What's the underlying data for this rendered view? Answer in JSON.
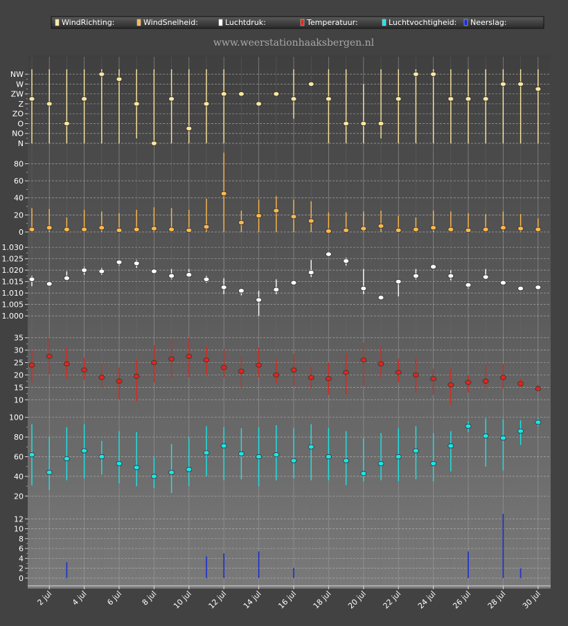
{
  "watermark": "www.weerstationhaaksbergen.nl",
  "legend": [
    {
      "label": "WindRichting:",
      "color": "#ffe7a0"
    },
    {
      "label": "WindSnelheid:",
      "color": "#ffb84d"
    },
    {
      "label": "Luchtdruk:",
      "color": "#ffffff"
    },
    {
      "label": "Temperatuur:",
      "color": "#e0261a"
    },
    {
      "label": "Luchtvochtigheid:",
      "color": "#19e6ea"
    },
    {
      "label": "Neerslag:",
      "color": "#1a2fcf"
    }
  ],
  "chart_data": {
    "type": "scatter",
    "days": [
      1,
      2,
      3,
      4,
      5,
      6,
      7,
      8,
      9,
      10,
      11,
      12,
      13,
      14,
      15,
      16,
      17,
      18,
      19,
      20,
      21,
      22,
      23,
      24,
      25,
      26,
      27,
      28,
      29,
      30
    ],
    "x_tick_labels": [
      "2 jul",
      "4 jul",
      "6 jul",
      "8 jul",
      "10 jul",
      "12 jul",
      "14 jul",
      "16 jul",
      "18 jul",
      "20 jul",
      "22 jul",
      "24 jul",
      "26 jul",
      "28 jul",
      "30 jul"
    ],
    "x_tick_days": [
      2,
      4,
      6,
      8,
      10,
      12,
      14,
      16,
      18,
      20,
      22,
      24,
      26,
      28,
      30
    ],
    "panels": [
      {
        "name": "WindRichting",
        "color": "#ffe7a0",
        "kind": "errorbar",
        "ylim": [
          0,
          7.5
        ],
        "tick_values": [
          0,
          1,
          2,
          3,
          4,
          5,
          6,
          7
        ],
        "tick_labels": [
          "N",
          "NO",
          "O",
          "ZO",
          "Z",
          "ZW",
          "W",
          "NW"
        ],
        "values": [
          4.5,
          4.0,
          2.0,
          4.5,
          7.0,
          6.5,
          4.0,
          0.0,
          4.5,
          1.5,
          4.0,
          5.0,
          5.0,
          4.0,
          5.0,
          4.5,
          6.0,
          4.5,
          2.0,
          2.0,
          2.0,
          4.5,
          7.0,
          7.0,
          4.5,
          4.5,
          4.5,
          6.0,
          6.0,
          5.5
        ],
        "low": [
          0,
          0,
          0,
          0,
          0,
          0,
          0.5,
          0,
          0,
          0,
          0,
          0,
          5,
          4,
          5,
          2.5,
          6,
          0,
          0,
          0,
          0.5,
          0,
          0,
          0,
          0,
          0,
          0,
          0,
          0,
          0
        ],
        "high": [
          7.5,
          7.5,
          7.5,
          7.5,
          7.5,
          7.5,
          7.5,
          7.5,
          7.5,
          7.5,
          7.5,
          7.5,
          5,
          4,
          5,
          7.5,
          6,
          7.5,
          7.5,
          6,
          7.5,
          7.5,
          7.5,
          7.5,
          7.5,
          7.5,
          7.5,
          7.5,
          7.5,
          7.5
        ]
      },
      {
        "name": "WindSnelheid",
        "color": "#ffb84d",
        "kind": "errorbar",
        "ylim": [
          0,
          95
        ],
        "tick_values": [
          0,
          20,
          40,
          60,
          80
        ],
        "tick_labels": [
          "0",
          "20",
          "40",
          "60",
          "80"
        ],
        "values": [
          3,
          5,
          3,
          3,
          5,
          2,
          3,
          4,
          3,
          2,
          6,
          45,
          11,
          19,
          25,
          18,
          13,
          1,
          2,
          4,
          7,
          2,
          3,
          5,
          3,
          2,
          3,
          5,
          4,
          3
        ],
        "low": [
          0,
          0,
          0,
          0,
          0,
          0,
          0,
          0,
          0,
          0,
          0,
          0,
          0,
          0,
          0,
          0,
          0,
          0,
          0,
          0,
          0,
          0,
          0,
          0,
          0,
          0,
          0,
          0,
          0,
          0
        ],
        "high": [
          28,
          27,
          17,
          26,
          24,
          22,
          26,
          29,
          28,
          26,
          39,
          93,
          25,
          38,
          42,
          38,
          36,
          23,
          23,
          24,
          25,
          19,
          17,
          25,
          24,
          22,
          21,
          24,
          21,
          16
        ]
      },
      {
        "name": "Luchtdruk",
        "color": "#ffffff",
        "kind": "errorbar",
        "ylim": [
          0.997,
          1.034
        ],
        "tick_values": [
          1.0,
          1.005,
          1.01,
          1.015,
          1.02,
          1.025,
          1.03
        ],
        "tick_labels": [
          "1.000",
          "1.005",
          "1.010",
          "1.015",
          "1.020",
          "1.025",
          "1.030"
        ],
        "values": [
          1.016,
          1.014,
          1.0165,
          1.02,
          1.0195,
          1.0235,
          1.023,
          1.0195,
          1.0175,
          1.018,
          1.016,
          1.0125,
          1.011,
          1.007,
          1.0115,
          1.0145,
          1.019,
          1.027,
          1.024,
          1.012,
          1.008,
          1.015,
          1.0175,
          1.0215,
          1.0175,
          1.0135,
          1.017,
          1.0145,
          1.012,
          1.0125
        ],
        "low": [
          1.013,
          1.0135,
          1.016,
          1.018,
          1.018,
          1.022,
          1.021,
          1.019,
          1.016,
          1.017,
          1.0145,
          1.0095,
          1.009,
          1.0,
          1.0095,
          1.0135,
          1.017,
          1.026,
          1.022,
          1.0095,
          1.0075,
          1.0085,
          1.016,
          1.021,
          1.0155,
          1.012,
          1.016,
          1.0135,
          1.0115,
          1.012
        ],
        "high": [
          1.0175,
          1.015,
          1.0195,
          1.0215,
          1.021,
          1.0245,
          1.0245,
          1.0205,
          1.0205,
          1.0205,
          1.0175,
          1.0165,
          1.012,
          1.011,
          1.016,
          1.0155,
          1.0245,
          1.028,
          1.0255,
          1.0205,
          1.009,
          1.015,
          1.0205,
          1.022,
          1.02,
          1.0145,
          1.0205,
          1.0155,
          1.0125,
          1.013
        ]
      },
      {
        "name": "Temperatuur",
        "color": "#e0261a",
        "kind": "errorbar",
        "ylim": [
          7,
          38
        ],
        "tick_values": [
          10,
          15,
          20,
          25,
          30,
          35
        ],
        "tick_labels": [
          "10",
          "15",
          "20",
          "25",
          "30",
          "35"
        ],
        "values": [
          24,
          27.5,
          24.5,
          22,
          19,
          17.5,
          19.5,
          25,
          26.5,
          27.5,
          26,
          23,
          21.5,
          24,
          20,
          22,
          19,
          18.5,
          21,
          26,
          24.5,
          21,
          20,
          18.5,
          16,
          17,
          17.5,
          19,
          16.5,
          14.5
        ],
        "low": [
          17.5,
          20,
          18.5,
          18,
          15,
          10,
          9.5,
          17,
          18.5,
          19,
          20,
          19,
          14.5,
          19,
          16.5,
          15.5,
          14.5,
          12,
          12,
          15.5,
          19,
          17,
          13,
          12,
          8,
          13,
          14.5,
          14.5,
          15,
          14
        ],
        "high": [
          30,
          35,
          31,
          27,
          24.5,
          23,
          26,
          32,
          34.5,
          35,
          31.5,
          30.5,
          27.5,
          31,
          26.5,
          28.5,
          23.5,
          25,
          28.5,
          33,
          31.5,
          26.5,
          27,
          22.5,
          22.5,
          20,
          24,
          24.5,
          18.5,
          16
        ]
      },
      {
        "name": "Luchtvochtigheid",
        "color": "#19e6ea",
        "kind": "errorbar",
        "ylim": [
          16,
          104
        ],
        "tick_values": [
          20,
          40,
          60,
          80,
          100
        ],
        "tick_labels": [
          "20",
          "40",
          "60",
          "80",
          "100"
        ],
        "values": [
          62,
          44,
          58,
          66,
          60,
          53,
          49,
          40,
          44,
          47,
          64,
          71,
          63,
          60,
          62,
          56,
          70,
          60,
          56,
          43,
          53,
          60,
          66,
          53,
          71,
          91,
          81,
          79,
          86,
          95
        ],
        "low": [
          31,
          26,
          36,
          38,
          42,
          33,
          30,
          28,
          23,
          30,
          40,
          36,
          37,
          30,
          36,
          38,
          36,
          36,
          31,
          35,
          36,
          35,
          37,
          35,
          45,
          85,
          50,
          46,
          72,
          91
        ],
        "high": [
          93,
          80,
          90,
          93,
          76,
          86,
          85,
          60,
          73,
          80,
          91,
          90,
          89,
          90,
          92,
          89,
          93,
          89,
          86,
          79,
          84,
          89,
          91,
          84,
          86,
          96,
          99,
          98,
          97,
          99
        ]
      },
      {
        "name": "Neerslag",
        "color": "#1a2fcf",
        "kind": "bar",
        "ylim": [
          -1,
          14
        ],
        "tick_values": [
          0,
          2,
          4,
          6,
          8,
          10,
          12
        ],
        "tick_labels": [
          "0",
          "2",
          "4",
          "6",
          "8",
          "10",
          "12"
        ],
        "values": [
          0,
          0,
          3.2,
          0,
          0,
          0,
          0,
          0,
          0,
          0,
          4.4,
          5.0,
          0,
          5.4,
          0,
          2.1,
          0,
          0,
          0,
          0,
          0,
          0,
          0,
          0,
          0,
          5.4,
          0,
          13.0,
          2.0,
          0
        ]
      }
    ]
  }
}
